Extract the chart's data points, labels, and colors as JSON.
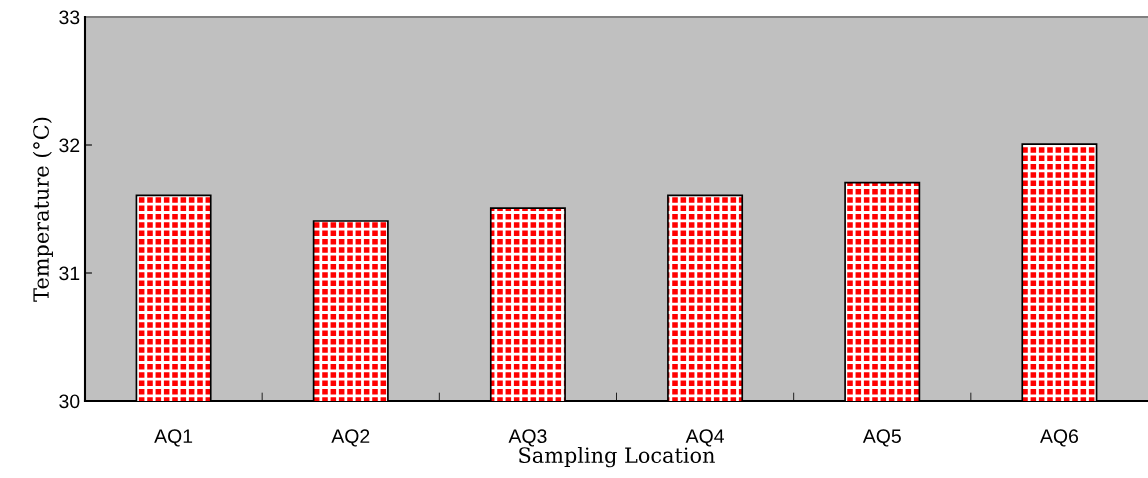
{
  "chart_data": {
    "type": "bar",
    "xlabel": "Sampling Location",
    "ylabel": "Temperature (°C)",
    "categories": [
      "AQ1",
      "AQ2",
      "AQ3",
      "AQ4",
      "AQ5",
      "AQ6"
    ],
    "values": [
      31.6,
      31.4,
      31.5,
      31.6,
      31.7,
      32.0
    ],
    "color": "#ff0000",
    "ylim": [
      30,
      33
    ],
    "yticks": [
      30,
      31,
      32,
      33
    ],
    "grid": false
  }
}
